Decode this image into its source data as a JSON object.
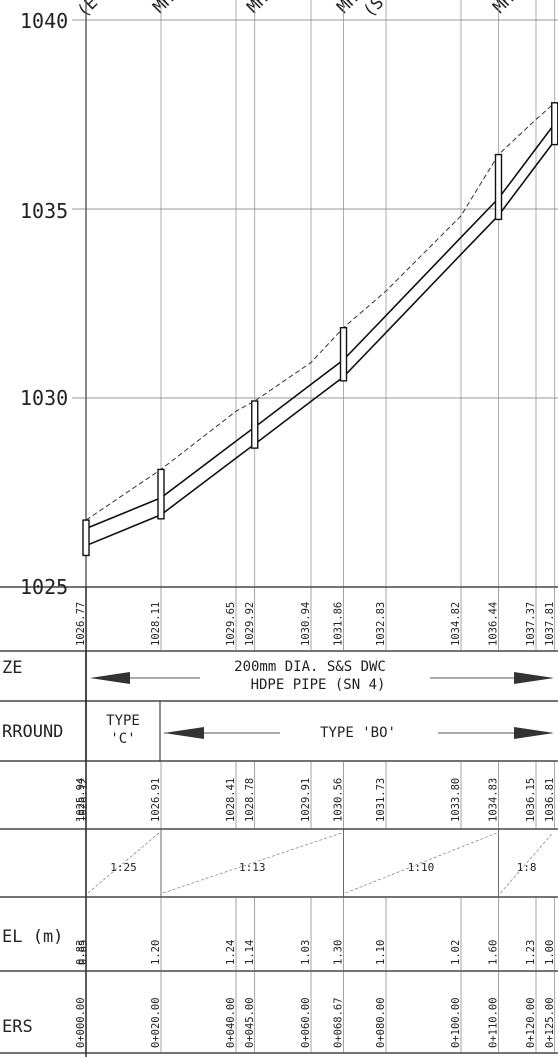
{
  "elevation_axis": {
    "ticks": [
      {
        "label": "1040",
        "value": 1040
      },
      {
        "label": "1035",
        "value": 1035
      },
      {
        "label": "1030",
        "value": 1030
      },
      {
        "label": "1025",
        "value": 1025
      }
    ]
  },
  "row_labels": {
    "pipe_size": "ZE",
    "surround": "RROUND",
    "cover": "EL (m)",
    "chainage": "ERS"
  },
  "ground_levels": [
    {
      "station": 0,
      "value": "1026.77"
    },
    {
      "station": 20,
      "value": "1028.11"
    },
    {
      "station": 40,
      "value": "1029.65"
    },
    {
      "station": 45,
      "value": "1029.92"
    },
    {
      "station": 60,
      "value": "1030.94"
    },
    {
      "station": 68.67,
      "value": "1031.86"
    },
    {
      "station": 80,
      "value": "1032.83"
    },
    {
      "station": 100,
      "value": "1034.82"
    },
    {
      "station": 110,
      "value": "1036.44"
    },
    {
      "station": 120,
      "value": "1037.37"
    },
    {
      "station": 125,
      "value": "1037.81"
    }
  ],
  "invert_levels": [
    {
      "station": 0,
      "value": "1025.94"
    },
    {
      "station": 0.6,
      "value": "1026.12"
    },
    {
      "station": 20,
      "value": "1026.91"
    },
    {
      "station": 40,
      "value": "1028.41"
    },
    {
      "station": 45,
      "value": "1028.78"
    },
    {
      "station": 60,
      "value": "1029.91"
    },
    {
      "station": 68.67,
      "value": "1030.56"
    },
    {
      "station": 80,
      "value": "1031.73"
    },
    {
      "station": 100,
      "value": "1033.80"
    },
    {
      "station": 110,
      "value": "1034.83"
    },
    {
      "station": 120,
      "value": "1036.15"
    },
    {
      "station": 125,
      "value": "1036.81"
    }
  ],
  "cover_depths": [
    {
      "station": 0,
      "value": "0.83"
    },
    {
      "station": 0.6,
      "value": "0.65"
    },
    {
      "station": 20,
      "value": "1.20"
    },
    {
      "station": 40,
      "value": "1.24"
    },
    {
      "station": 45,
      "value": "1.14"
    },
    {
      "station": 60,
      "value": "1.03"
    },
    {
      "station": 68.67,
      "value": "1.30"
    },
    {
      "station": 80,
      "value": "1.10"
    },
    {
      "station": 100,
      "value": "1.02"
    },
    {
      "station": 110,
      "value": "1.60"
    },
    {
      "station": 120,
      "value": "1.23"
    },
    {
      "station": 125,
      "value": "1.00"
    }
  ],
  "chainages": [
    {
      "station": 0,
      "value": "0+000.00"
    },
    {
      "station": 20,
      "value": "0+020.00"
    },
    {
      "station": 40,
      "value": "0+040.00"
    },
    {
      "station": 45,
      "value": "0+045.00"
    },
    {
      "station": 60,
      "value": "0+060.00"
    },
    {
      "station": 68.67,
      "value": "0+068.67"
    },
    {
      "station": 80,
      "value": "0+080.00"
    },
    {
      "station": 100,
      "value": "0+100.00"
    },
    {
      "station": 110,
      "value": "0+110.00"
    },
    {
      "station": 120,
      "value": "0+120.00"
    },
    {
      "station": 125,
      "value": "0+125.00"
    }
  ],
  "pipe_description": {
    "line1": "200mm DIA. S&S DWC",
    "line2": "HDPE PIPE (SN 4)"
  },
  "surround_types": {
    "type_c_line1": "TYPE",
    "type_c_line2": "'C'",
    "type_bo": "TYPE 'BO'"
  },
  "gradients": [
    {
      "from": 0,
      "to": 20,
      "label": "1:25"
    },
    {
      "from": 20,
      "to": 68.67,
      "label": "1:13"
    },
    {
      "from": 68.67,
      "to": 110,
      "label": "1:10"
    },
    {
      "from": 110,
      "to": 125,
      "label": "1:8"
    }
  ],
  "manholes": [
    {
      "station": 0,
      "top_label": "(E"
    },
    {
      "station": 20,
      "top_label": "MH"
    },
    {
      "station": 45,
      "top_label": "MH"
    },
    {
      "station": 68.67,
      "top_label": "MH"
    },
    {
      "station": 75,
      "top_label": "(S"
    },
    {
      "station": 110,
      "top_label": "MH"
    }
  ]
}
